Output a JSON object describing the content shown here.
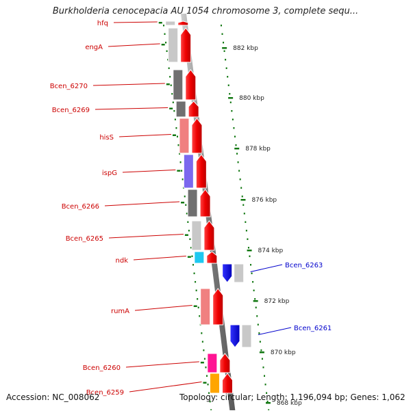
{
  "title": "Burkholderia cenocepacia AU 1054 chromosome 3, complete sequ...",
  "footer": {
    "accession": "Accession: NC_008062",
    "topology": "Topology: circular; Length: 1,196,094 bp; Genes: 1,062"
  },
  "colors": {
    "forward_label": "#cc0000",
    "reverse_label": "#0000cc",
    "forward_arrow": "#ee0000",
    "reverse_arrow": "#0000ee",
    "backbone": "#888888",
    "tick": "#117711"
  },
  "scale_labels": [
    "882 kbp",
    "880 kbp",
    "878 kbp",
    "876 kbp",
    "874 kbp",
    "872 kbp",
    "870 kbp",
    "868 kbp"
  ],
  "forward_genes": [
    {
      "name": "hfq",
      "cog_color": "#c8c8c8"
    },
    {
      "name": "engA",
      "cog_color": "#c8c8c8"
    },
    {
      "name": "Bcen_6270",
      "cog_color": "#707070"
    },
    {
      "name": "Bcen_6269",
      "cog_color": "#707070"
    },
    {
      "name": "hisS",
      "cog_color": "#f08080"
    },
    {
      "name": "ispG",
      "cog_color": "#7b68ee"
    },
    {
      "name": "Bcen_6266",
      "cog_color": "#707070"
    },
    {
      "name": "Bcen_6265",
      "cog_color": "#c8c8c8"
    },
    {
      "name": "ndk",
      "cog_color": "#1ec8f0"
    },
    {
      "name": "rumA",
      "cog_color": "#f08080"
    },
    {
      "name": "Bcen_6260",
      "cog_color": "#ff1493"
    },
    {
      "name": "Bcen_6259",
      "cog_color": "#ffa500"
    }
  ],
  "reverse_genes": [
    {
      "name": "Bcen_6263",
      "cog_color": "#c8c8c8"
    },
    {
      "name": "Bcen_6261",
      "cog_color": "#c8c8c8"
    }
  ]
}
